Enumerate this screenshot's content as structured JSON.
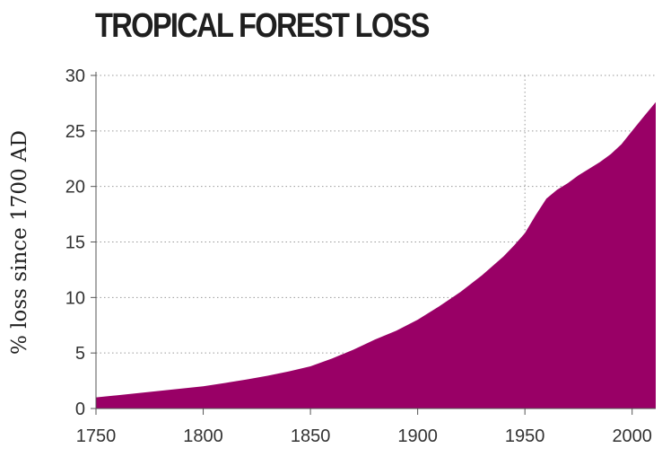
{
  "chart_data": {
    "type": "area",
    "title": "TROPICAL FOREST LOSS",
    "xlabel": "",
    "ylabel": "% loss since 1700 AD",
    "x_ticks": [
      "1750",
      "1800",
      "1850",
      "1900",
      "1950",
      "2000"
    ],
    "y_ticks": [
      "0",
      "5",
      "10",
      "15",
      "20",
      "25",
      "30"
    ],
    "xlim": [
      1750,
      2011
    ],
    "ylim": [
      0,
      30
    ],
    "grid": "dotted",
    "fill_color": "#990066",
    "series": [
      {
        "x": [
          1750,
          1760,
          1770,
          1780,
          1790,
          1800,
          1810,
          1820,
          1830,
          1840,
          1850,
          1860,
          1870,
          1880,
          1890,
          1900,
          1910,
          1920,
          1930,
          1940,
          1945,
          1950,
          1955,
          1960,
          1965,
          1970,
          1975,
          1980,
          1985,
          1990,
          1995,
          2000,
          2005,
          2011
        ],
        "y": [
          1.0,
          1.2,
          1.4,
          1.6,
          1.8,
          2.0,
          2.3,
          2.6,
          2.95,
          3.35,
          3.8,
          4.5,
          5.3,
          6.2,
          7.0,
          8.0,
          9.2,
          10.5,
          12.0,
          13.7,
          14.7,
          15.8,
          17.4,
          18.9,
          19.7,
          20.3,
          21.0,
          21.6,
          22.2,
          22.9,
          23.8,
          25.0,
          26.2,
          27.6
        ]
      }
    ]
  }
}
